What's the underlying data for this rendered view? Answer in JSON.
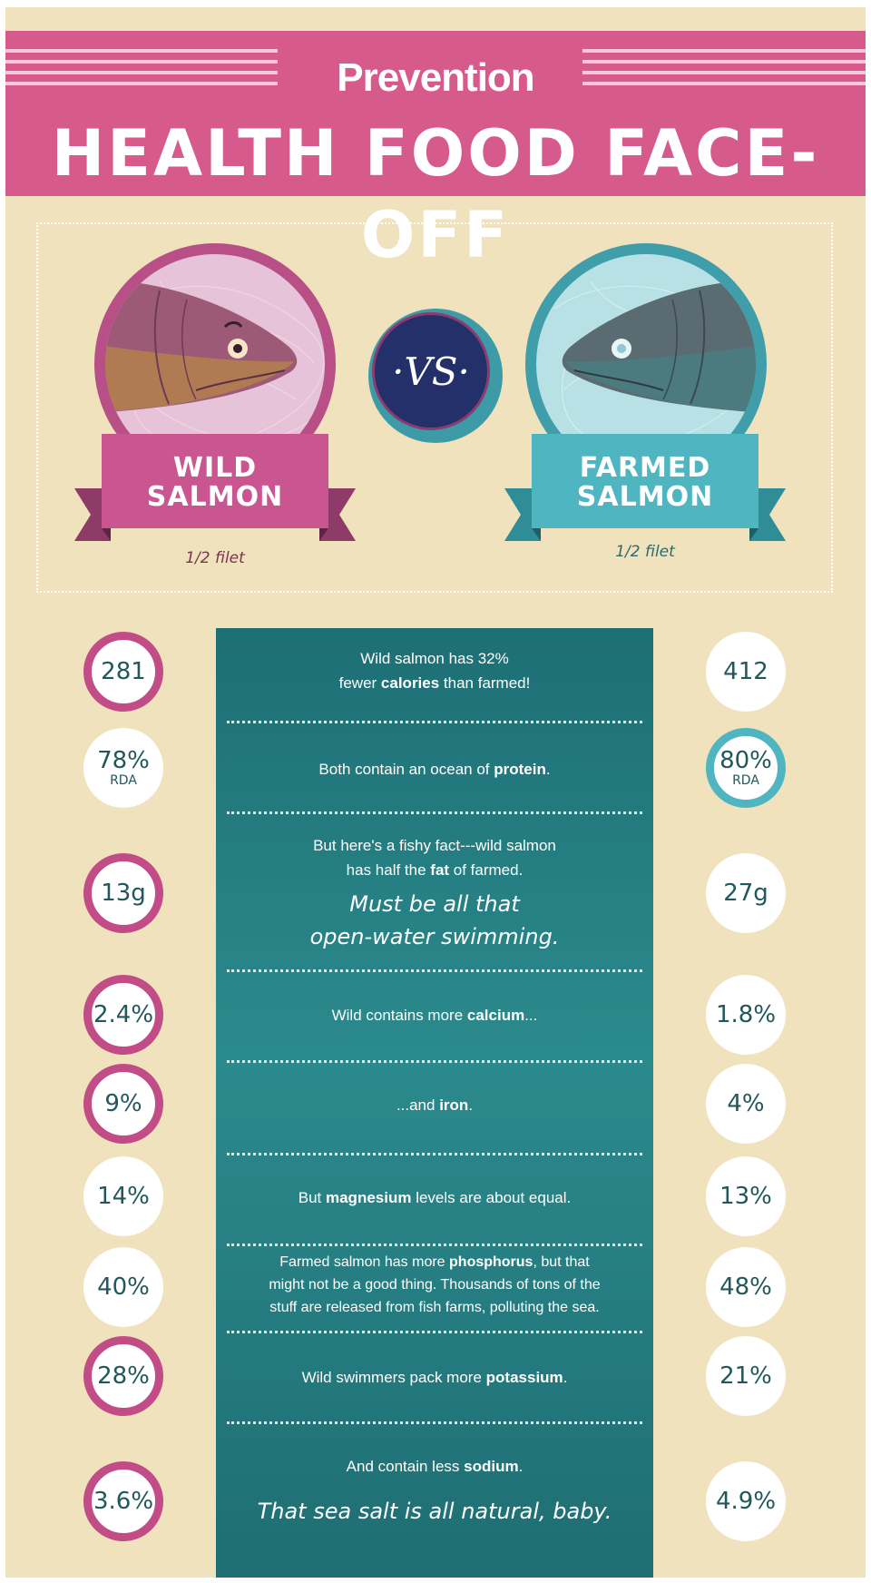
{
  "header": {
    "brand": "Prevention",
    "title": "HEALTH FOOD FACE-OFF"
  },
  "versus": {
    "label": "·VS·",
    "left": {
      "name_line1": "WILD",
      "name_line2": "SALMON",
      "serving": "1/2 filet"
    },
    "right": {
      "name_line1": "FARMED",
      "name_line2": "SALMON",
      "serving": "1/2 filet"
    }
  },
  "rows": [
    {
      "wild": "281",
      "farmed": "412",
      "winner": "wild",
      "text_a": "Wild salmon has 32%",
      "text_b": "fewer ",
      "text_b_bold": "calories",
      "text_b_end": " than farmed!"
    },
    {
      "wild": "78%",
      "wild_sub": "RDA",
      "farmed": "80%",
      "farmed_sub": "RDA",
      "winner": "farmed",
      "text_a": "Both contain an ocean of ",
      "text_a_bold": "protein",
      "text_a_end": "."
    },
    {
      "wild": "13g",
      "farmed": "27g",
      "winner": "wild",
      "text_a": "But here's a fishy fact---wild salmon",
      "text_b": "has half the ",
      "text_b_bold": "fat",
      "text_b_end": " of farmed.",
      "quip_1": "Must be all that",
      "quip_2": "open-water swimming."
    },
    {
      "wild": "2.4%",
      "farmed": "1.8%",
      "winner": "wild",
      "text_a": "Wild contains more ",
      "text_a_bold": "calcium",
      "text_a_end": "..."
    },
    {
      "wild": "9%",
      "farmed": "4%",
      "winner": "wild",
      "text_a": "...and ",
      "text_a_bold": "iron",
      "text_a_end": "."
    },
    {
      "wild": "14%",
      "farmed": "13%",
      "winner": "none",
      "text_a": "But ",
      "text_a_bold": "magnesium",
      "text_a_end": " levels are about equal."
    },
    {
      "wild": "40%",
      "farmed": "48%",
      "winner": "none",
      "text_a": "Farmed salmon has more ",
      "text_a_bold": "phosphorus",
      "text_a_end": ", but that",
      "text_b": "might not be a good thing. Thousands of tons of the",
      "text_c": "stuff are released from fish farms, polluting the sea."
    },
    {
      "wild": "28%",
      "farmed": "21%",
      "winner": "wild",
      "text_a": "Wild swimmers pack more ",
      "text_a_bold": "potassium",
      "text_a_end": "."
    },
    {
      "wild": "3.6%",
      "farmed": "4.9%",
      "winner": "wild",
      "text_a": "And contain less ",
      "text_a_bold": "sodium",
      "text_a_end": ".",
      "quip_1": "That sea salt is all natural, baby."
    }
  ],
  "colors": {
    "background": "#efe2bd",
    "banner_pink": "#d65a8c",
    "wild_accent": "#c24d86",
    "farmed_accent": "#4fb5c1",
    "fact_panel": "#2b8a8d",
    "vs_navy": "#23306a"
  },
  "icons": {
    "wild_fish": "wild-salmon-head-illustration",
    "farmed_fish": "farmed-salmon-head-illustration"
  }
}
